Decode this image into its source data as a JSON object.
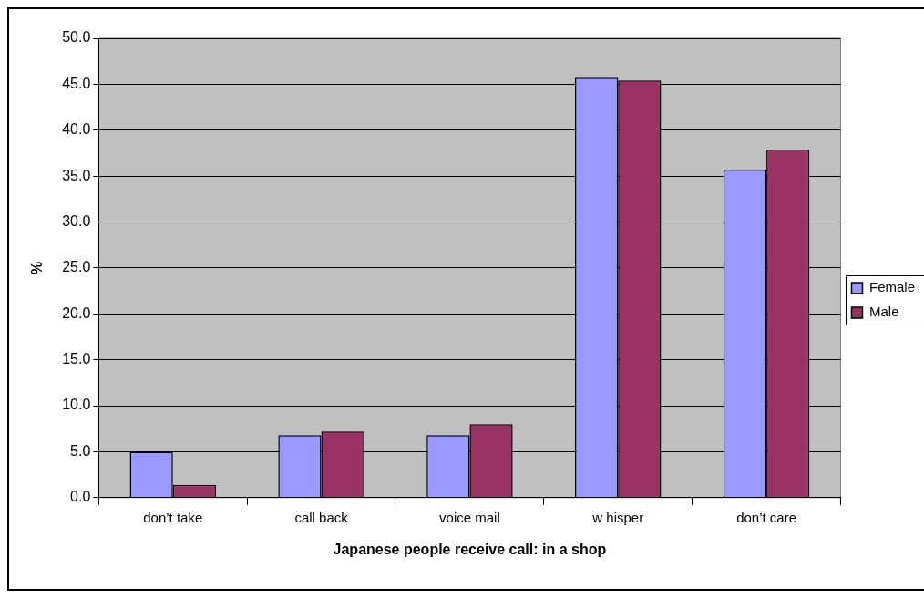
{
  "chart_data": {
    "type": "bar",
    "xlabel": "Japanese people receive call: in a shop",
    "ylabel": "%",
    "categories": [
      "don’t take",
      "call back",
      "voice mail",
      "w hisper",
      "don’t care"
    ],
    "series": [
      {
        "name": "Female",
        "color": "#9999ff",
        "values": [
          5.0,
          6.8,
          6.8,
          45.7,
          35.7
        ]
      },
      {
        "name": "Male",
        "color": "#993366",
        "values": [
          1.4,
          7.2,
          8.0,
          45.4,
          37.9
        ]
      }
    ],
    "ylim": [
      0,
      50
    ],
    "yticks": [
      {
        "value": 0,
        "label": "0.0"
      },
      {
        "value": 5,
        "label": "5.0"
      },
      {
        "value": 10,
        "label": "10.0"
      },
      {
        "value": 15,
        "label": "15.0"
      },
      {
        "value": 20,
        "label": "20.0"
      },
      {
        "value": 25,
        "label": "25.0"
      },
      {
        "value": 30,
        "label": "30.0"
      },
      {
        "value": 35,
        "label": "35.0"
      },
      {
        "value": 40,
        "label": "40.0"
      },
      {
        "value": 45,
        "label": "45.0"
      },
      {
        "value": 50,
        "label": "50.0"
      }
    ],
    "grid": "y",
    "legend": "right"
  }
}
